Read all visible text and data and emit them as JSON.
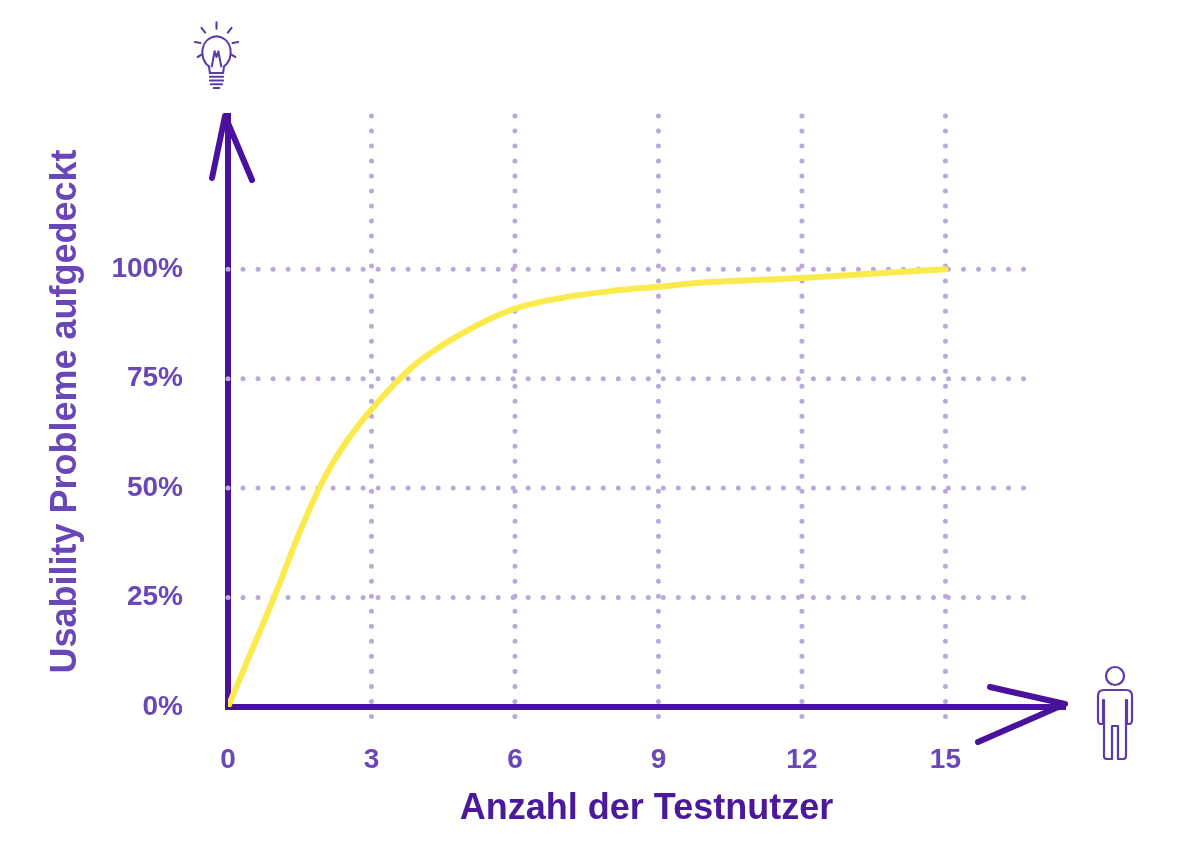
{
  "chart_data": {
    "type": "line",
    "xlabel": "Anzahl der Testnutzer",
    "ylabel": "Usability Probleme aufgedeckt",
    "x": [
      0,
      0.5,
      1,
      1.5,
      2,
      2.5,
      3,
      3.5,
      4,
      5,
      6,
      7,
      8,
      9,
      10,
      12,
      13.5,
      15
    ],
    "series": [
      {
        "color": "#fbea4b",
        "values": [
          0,
          13,
          26,
          40,
          52,
          61,
          68,
          74,
          79,
          86,
          91,
          93.5,
          95,
          96,
          97,
          98,
          99,
          100
        ]
      }
    ],
    "xlim": [
      0,
      17.5
    ],
    "ylim": [
      0,
      135
    ],
    "xticks": [
      0,
      3,
      6,
      9,
      12,
      15
    ],
    "yticks": [
      {
        "value": 0,
        "label": "0%"
      },
      {
        "value": 25,
        "label": "25%"
      },
      {
        "value": 50,
        "label": "50%"
      },
      {
        "value": 75,
        "label": "75%"
      },
      {
        "value": 100,
        "label": "100%"
      }
    ],
    "grid": true
  }
}
